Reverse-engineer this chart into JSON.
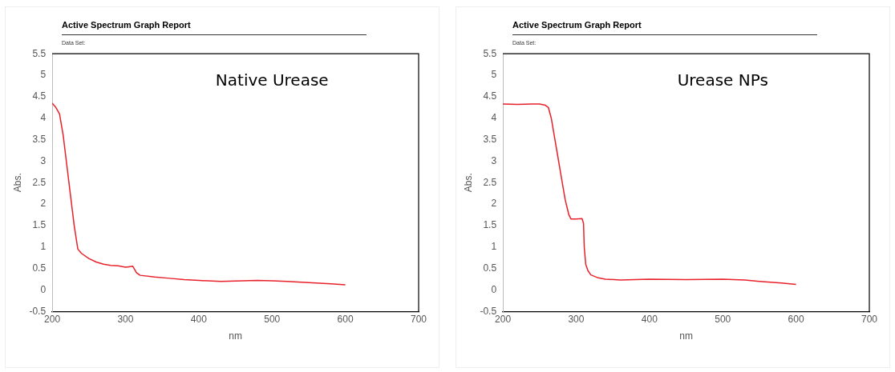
{
  "chart_data": [
    {
      "type": "line",
      "title": "Active Spectrum Graph Report",
      "subtitle": "Data Set:",
      "xlabel": "nm",
      "ylabel": "Abs.",
      "annotations": [
        "Native Urease"
      ],
      "xlim": [
        200,
        700
      ],
      "xticks": [
        200,
        300,
        400,
        500,
        600,
        700
      ],
      "ylim": [
        -0.5,
        5.5
      ],
      "yticks": [
        -0.5,
        0,
        0.5,
        1,
        1.5,
        2,
        2.5,
        3,
        3.5,
        4,
        4.5,
        5,
        5.5
      ],
      "grid": false,
      "legend": false,
      "marker": "none",
      "series": [
        {
          "color": "#e8202a",
          "x": [
            200,
            205,
            210,
            215,
            220,
            225,
            230,
            235,
            240,
            250,
            260,
            270,
            280,
            290,
            300,
            305,
            310,
            315,
            320,
            340,
            360,
            380,
            400,
            430,
            460,
            480,
            500,
            520,
            550,
            580,
            600
          ],
          "values": [
            4.35,
            4.25,
            4.1,
            3.6,
            2.9,
            2.2,
            1.5,
            0.95,
            0.85,
            0.73,
            0.65,
            0.6,
            0.57,
            0.56,
            0.53,
            0.54,
            0.55,
            0.4,
            0.34,
            0.3,
            0.27,
            0.24,
            0.22,
            0.2,
            0.21,
            0.22,
            0.21,
            0.2,
            0.17,
            0.14,
            0.12
          ]
        }
      ]
    },
    {
      "type": "line",
      "title": "Active Spectrum Graph Report",
      "subtitle": "Data Set:",
      "xlabel": "nm",
      "ylabel": "Abs.",
      "annotations": [
        "Urease NPs"
      ],
      "xlim": [
        200,
        700
      ],
      "xticks": [
        200,
        300,
        400,
        500,
        600,
        700
      ],
      "ylim": [
        -0.5,
        5.5
      ],
      "yticks": [
        -0.5,
        0,
        0.5,
        1,
        1.5,
        2,
        2.5,
        3,
        3.5,
        4,
        4.5,
        5,
        5.5
      ],
      "grid": false,
      "legend": false,
      "marker": "none",
      "series": [
        {
          "color": "#e8202a",
          "x": [
            200,
            220,
            240,
            250,
            258,
            262,
            266,
            270,
            275,
            280,
            285,
            290,
            293,
            300,
            308,
            310,
            311,
            313,
            316,
            320,
            330,
            340,
            360,
            380,
            400,
            450,
            500,
            530,
            550,
            580,
            600
          ],
          "values": [
            4.33,
            4.32,
            4.33,
            4.33,
            4.3,
            4.25,
            4.0,
            3.6,
            3.1,
            2.6,
            2.1,
            1.75,
            1.65,
            1.65,
            1.66,
            1.55,
            1.0,
            0.6,
            0.45,
            0.35,
            0.28,
            0.25,
            0.23,
            0.24,
            0.25,
            0.24,
            0.25,
            0.23,
            0.2,
            0.16,
            0.13
          ]
        }
      ]
    }
  ]
}
